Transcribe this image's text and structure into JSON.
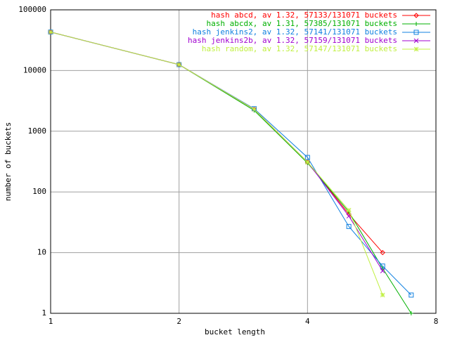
{
  "chart_data": {
    "type": "line",
    "xlabel": "bucket length",
    "ylabel": "number of buckets",
    "x": [
      1,
      2,
      3,
      4,
      5,
      6,
      7
    ],
    "series": [
      {
        "name": "hash abcd, av 1.32, 57133/131071 buckets",
        "color": "#ff0000",
        "marker": "diamond",
        "values": [
          43000,
          12500,
          2300,
          310,
          43,
          10,
          null
        ]
      },
      {
        "name": "hash abcdx, av 1.31, 57385/131071 buckets",
        "color": "#00b000",
        "marker": "plus",
        "values": [
          43000,
          12500,
          2200,
          300,
          47,
          5.5,
          1
        ]
      },
      {
        "name": "hash jenkins2, av 1.32, 57141/131071 buckets",
        "color": "#1080e0",
        "marker": "square",
        "values": [
          43000,
          12500,
          2350,
          370,
          27,
          6,
          2
        ]
      },
      {
        "name": "hash jenkins2b, av 1.32, 57159/131071 buckets",
        "color": "#a000d0",
        "marker": "cross",
        "values": [
          43000,
          12500,
          2300,
          310,
          40,
          5,
          null
        ]
      },
      {
        "name": "hash random, av 1.32, 57147/131071 buckets",
        "color": "#c0f040",
        "marker": "star",
        "values": [
          43000,
          12500,
          2300,
          310,
          50,
          2,
          null
        ]
      }
    ],
    "xlim": [
      1,
      8
    ],
    "xticks": [
      1,
      2,
      4,
      8
    ],
    "xlog": true,
    "ylim": [
      1,
      100000
    ],
    "yticks": [
      1,
      10,
      100,
      1000,
      10000,
      100000
    ],
    "ylog": true,
    "grid": true,
    "legend": "top-right"
  }
}
